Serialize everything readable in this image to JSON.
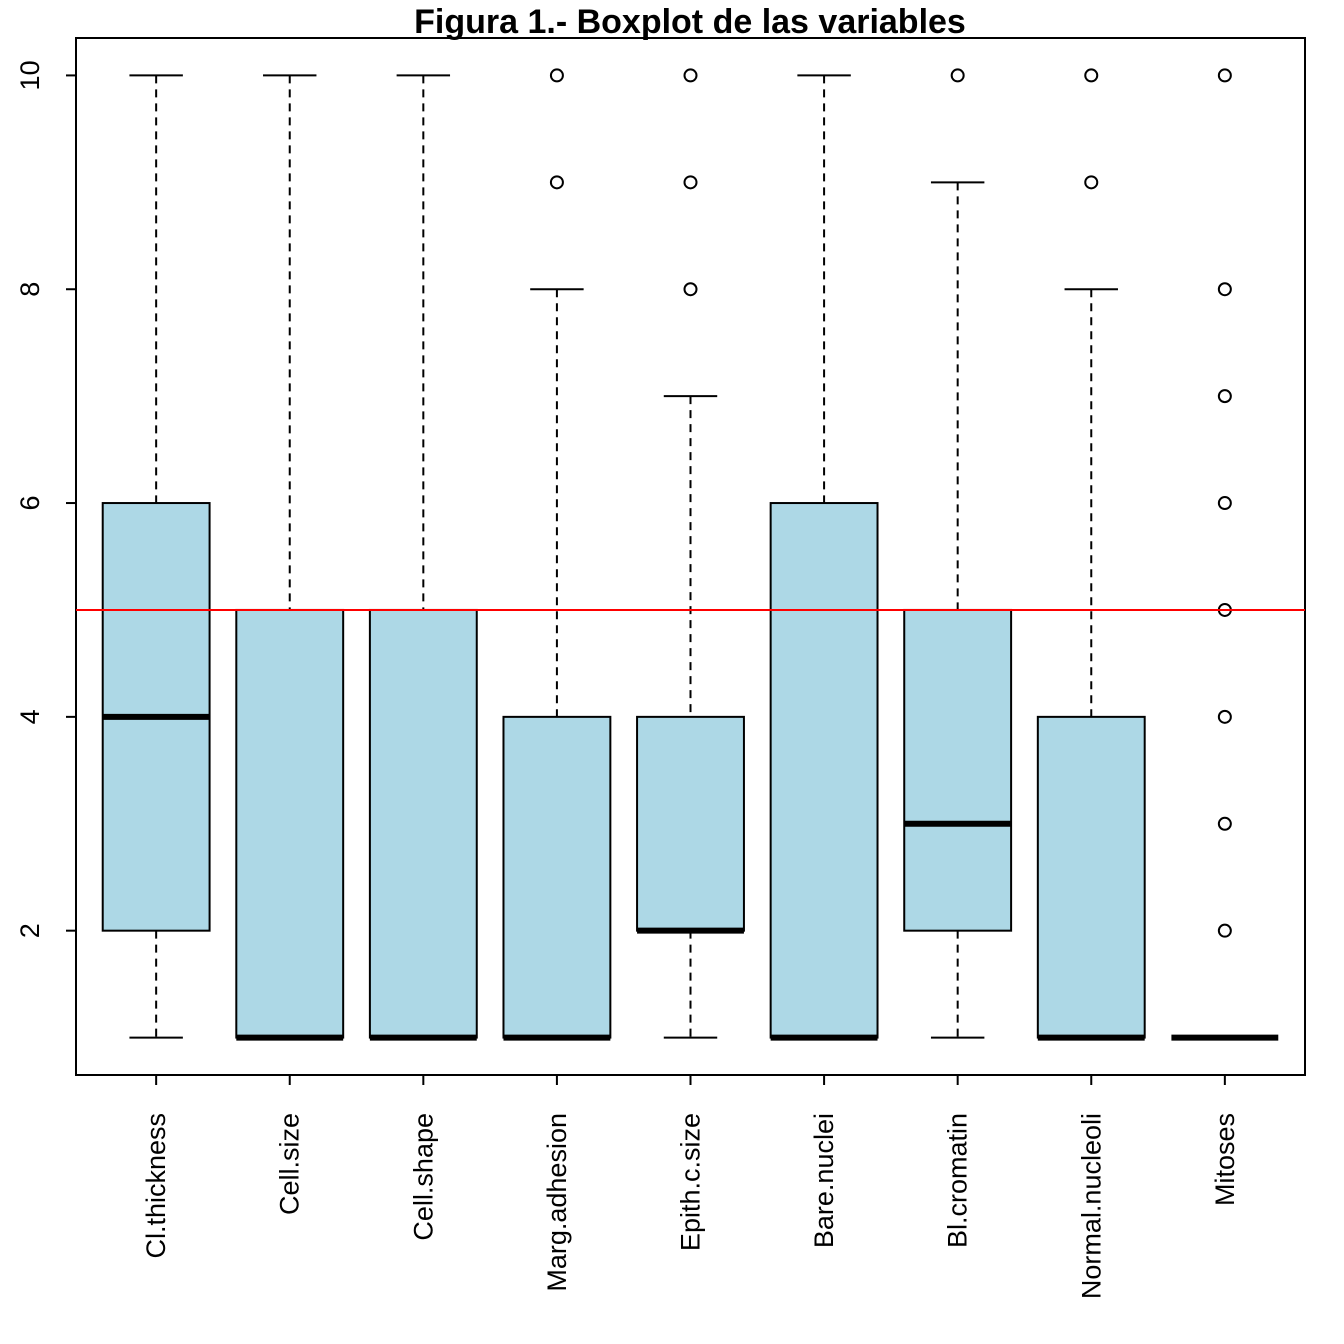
{
  "chart_data": {
    "type": "boxplot",
    "title": "Figura 1.- Boxplot de las variables",
    "xlabel": "",
    "ylabel": "",
    "ylim": [
      0.65,
      10.35
    ],
    "yticks": [
      2,
      4,
      6,
      8,
      10
    ],
    "box_fill": "#add8e6",
    "reference_line": {
      "y": 5,
      "color": "#ff0000"
    },
    "series": [
      {
        "name": "Cl.thickness",
        "min": 1,
        "q1": 2,
        "median": 4,
        "q3": 6,
        "max": 10,
        "outliers": []
      },
      {
        "name": "Cell.size",
        "min": 1,
        "q1": 1,
        "median": 1,
        "q3": 5,
        "max": 10,
        "outliers": []
      },
      {
        "name": "Cell.shape",
        "min": 1,
        "q1": 1,
        "median": 1,
        "q3": 5,
        "max": 10,
        "outliers": []
      },
      {
        "name": "Marg.adhesion",
        "min": 1,
        "q1": 1,
        "median": 1,
        "q3": 4,
        "max": 8,
        "outliers": [
          9,
          10
        ]
      },
      {
        "name": "Epith.c.size",
        "min": 1,
        "q1": 2,
        "median": 2,
        "q3": 4,
        "max": 7,
        "outliers": [
          8,
          9,
          10
        ]
      },
      {
        "name": "Bare.nuclei",
        "min": 1,
        "q1": 1,
        "median": 1,
        "q3": 6,
        "max": 10,
        "outliers": []
      },
      {
        "name": "Bl.cromatin",
        "min": 1,
        "q1": 2,
        "median": 3,
        "q3": 5,
        "max": 9,
        "outliers": [
          10
        ]
      },
      {
        "name": "Normal.nucleoli",
        "min": 1,
        "q1": 1,
        "median": 1,
        "q3": 4,
        "max": 8,
        "outliers": [
          9,
          10
        ]
      },
      {
        "name": "Mitoses",
        "min": 1,
        "q1": 1,
        "median": 1,
        "q3": 1,
        "max": 1,
        "outliers": [
          2,
          3,
          4,
          5,
          6,
          7,
          8,
          10
        ]
      }
    ]
  }
}
